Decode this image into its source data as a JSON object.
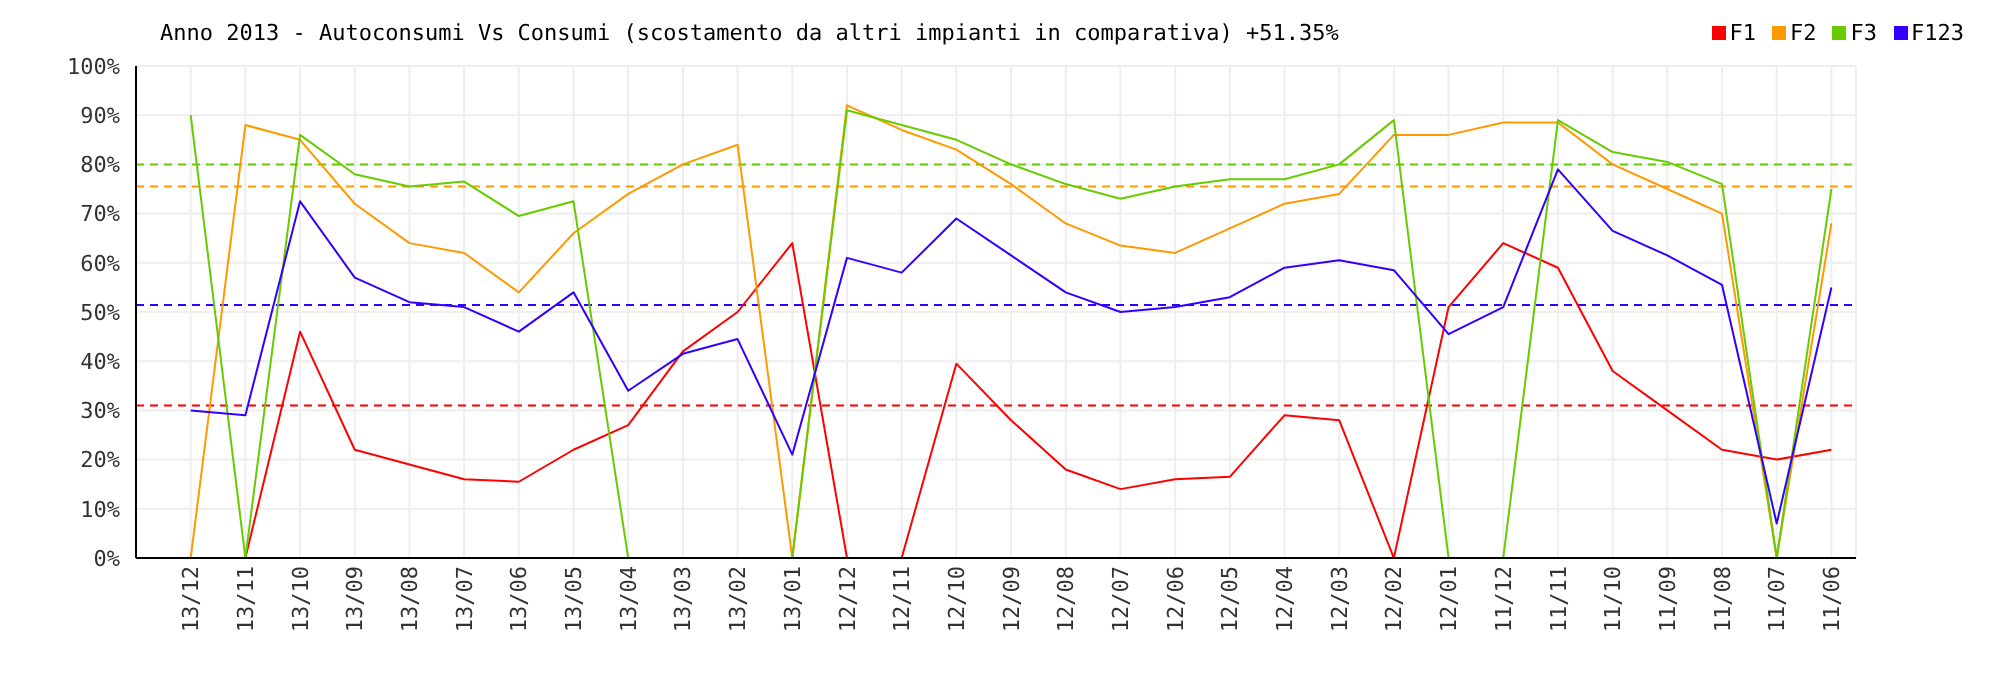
{
  "chart_data": {
    "type": "line",
    "title": "Anno 2013 - Autoconsumi Vs Consumi (scostamento da altri impianti in comparativa) +51.35%",
    "categories": [
      "13/12",
      "13/11",
      "13/10",
      "13/09",
      "13/08",
      "13/07",
      "13/06",
      "13/05",
      "13/04",
      "13/03",
      "13/02",
      "13/01",
      "12/12",
      "12/11",
      "12/10",
      "12/09",
      "12/08",
      "12/07",
      "12/06",
      "12/05",
      "12/04",
      "12/03",
      "12/02",
      "12/01",
      "11/12",
      "11/11",
      "11/10",
      "11/09",
      "11/08",
      "11/07",
      "11/06"
    ],
    "series": [
      {
        "name": "F1",
        "color": "#ff0000",
        "values": [
          null,
          0,
          46,
          22,
          19,
          16,
          15.5,
          22,
          27,
          42,
          50,
          64,
          0,
          0,
          39.5,
          28,
          18,
          14,
          16,
          16.5,
          29,
          28,
          0,
          51,
          64,
          59,
          38,
          30,
          22,
          20,
          22
        ]
      },
      {
        "name": "F2",
        "color": "#ff9900",
        "values": [
          0,
          88,
          85,
          72,
          64,
          62,
          54,
          66,
          74,
          80,
          84,
          0,
          92,
          87,
          83,
          76,
          68,
          63.5,
          62,
          67,
          72,
          74,
          86,
          86,
          88.5,
          88.5,
          80,
          75,
          70,
          0,
          68
        ]
      },
      {
        "name": "F3",
        "color": "#66cc00",
        "values": [
          90,
          0,
          86,
          78,
          75.5,
          76.5,
          69.5,
          72.5,
          0,
          null,
          null,
          0,
          91,
          88,
          85,
          80,
          76,
          73,
          75.5,
          77,
          77,
          80,
          89,
          0,
          0,
          89,
          82.5,
          80.5,
          76,
          0,
          75
        ]
      },
      {
        "name": "F123",
        "color": "#3300ff",
        "values": [
          30,
          29,
          72.5,
          57,
          52,
          51,
          46,
          54,
          34,
          41.5,
          44.5,
          21,
          61,
          58,
          69,
          61.5,
          54,
          50,
          51,
          53,
          59,
          60.5,
          58.5,
          45.5,
          51,
          79,
          66.5,
          61.5,
          55.5,
          7,
          55
        ]
      }
    ],
    "ylim": [
      0,
      100
    ],
    "yticks": [
      {
        "value": 0,
        "label": "0%"
      },
      {
        "value": 10,
        "label": "10%"
      },
      {
        "value": 20,
        "label": "20%"
      },
      {
        "value": 30,
        "label": "30%"
      },
      {
        "value": 40,
        "label": "40%"
      },
      {
        "value": 50,
        "label": "50%"
      },
      {
        "value": 60,
        "label": "60%"
      },
      {
        "value": 70,
        "label": "70%"
      },
      {
        "value": 80,
        "label": "80%"
      },
      {
        "value": 90,
        "label": "90%"
      },
      {
        "value": 100,
        "label": "100%"
      }
    ],
    "ref_lines": [
      {
        "axis": "y",
        "value": 31,
        "color": "#ff0000",
        "line_style": "dashed"
      },
      {
        "axis": "y",
        "value": 51.4,
        "color": "#3300ff",
        "line_style": "dashed"
      },
      {
        "axis": "y",
        "value": 75.5,
        "color": "#ff9900",
        "line_style": "dashed"
      },
      {
        "axis": "y",
        "value": 80,
        "color": "#66cc00",
        "line_style": "dashed"
      }
    ],
    "grid": true,
    "legend": "top right",
    "marker": "none",
    "line_style": "solid"
  }
}
